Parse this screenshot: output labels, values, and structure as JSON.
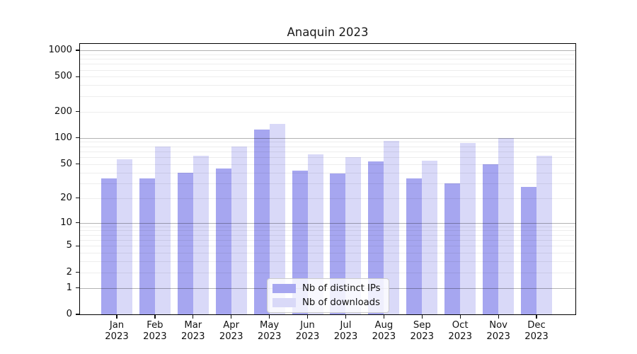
{
  "chart_data": {
    "type": "bar",
    "title": "Anaquin 2023",
    "categories": [
      "Jan",
      "Feb",
      "Mar",
      "Apr",
      "May",
      "Jun",
      "Jul",
      "Aug",
      "Sep",
      "Oct",
      "Nov",
      "Dec"
    ],
    "year_label": "2023",
    "series": [
      {
        "name": "Nb of distinct IPs",
        "color": "#a6a6f0",
        "values": [
          34,
          34,
          40,
          44,
          125,
          42,
          39,
          54,
          34,
          30,
          50,
          27
        ]
      },
      {
        "name": "Nb of downloads",
        "color": "#d9d9f8",
        "values": [
          57,
          80,
          62,
          80,
          145,
          65,
          60,
          92,
          55,
          87,
          100,
          62
        ]
      }
    ],
    "y_scale": "log1p",
    "ylim": [
      0,
      1180
    ],
    "y_ticks": [
      0,
      1,
      2,
      5,
      10,
      20,
      50,
      100,
      200,
      500,
      1000
    ],
    "y_tick_labels": [
      "0",
      "1",
      "2",
      "5",
      "10",
      "20",
      "50",
      "100",
      "200",
      "500",
      "1000"
    ],
    "y_major_gridlines": [
      1,
      10,
      100,
      1000
    ],
    "grid": "horizontal",
    "legend": {
      "position": "bottom-center",
      "entries": [
        "Nb of distinct IPs",
        "Nb of downloads"
      ]
    }
  },
  "colors": {
    "bar_ips": "#a6a6f0",
    "bar_downloads": "#d9d9f8",
    "axis": "#000000",
    "text": "#111111",
    "grid_major": "rgba(0,0,0,0.30)",
    "grid_minor": "rgba(0,0,0,0.07)",
    "legend_bg": "rgba(255,255,255,0.82)",
    "legend_border": "#cbcbcb"
  }
}
